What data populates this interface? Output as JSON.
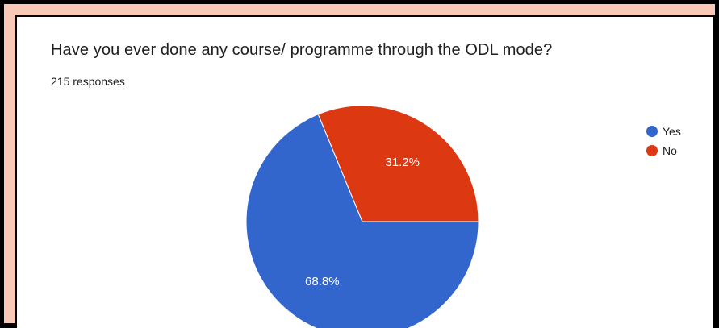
{
  "card": {
    "title": "Have you ever done any course/ programme through the ODL mode?",
    "responses": "215 responses"
  },
  "chart_data": {
    "type": "pie",
    "title": "Have you ever done any course/ programme through the ODL mode?",
    "subtitle": "215 responses",
    "total_responses": 215,
    "slices": [
      {
        "label": "Yes",
        "value": 68.8,
        "display": "68.8%",
        "color": "#3366cc"
      },
      {
        "label": "No",
        "value": 31.2,
        "display": "31.2%",
        "color": "#dc3912"
      }
    ],
    "legend_position": "top-right"
  }
}
